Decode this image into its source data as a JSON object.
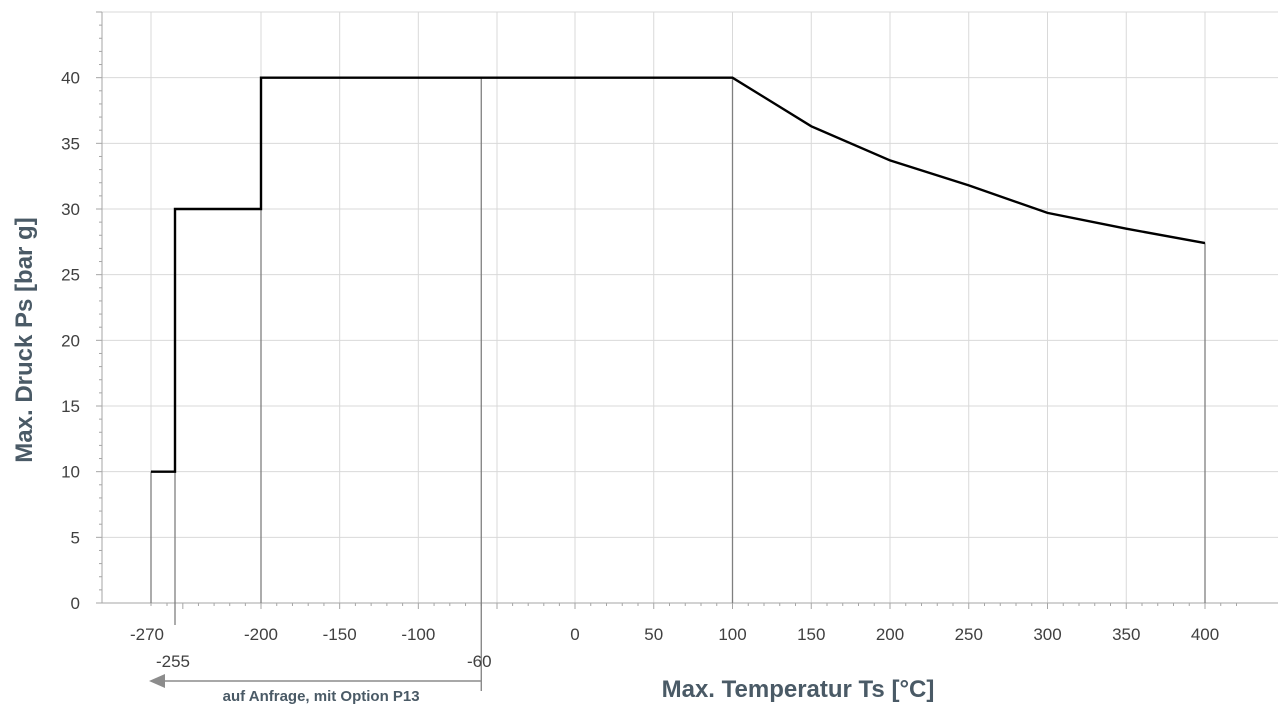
{
  "chart_data": {
    "type": "line",
    "xlabel": "Max. Temperatur Ts [°C]",
    "ylabel": "Max. Druck Ps [bar g]",
    "ylim": [
      0,
      45
    ],
    "y_ticks": [
      "0",
      "5",
      "10",
      "15",
      "20",
      "25",
      "30",
      "35",
      "40"
    ],
    "x_ticks_upper": [
      "-270",
      "-200",
      "-150",
      "-100",
      "0",
      "50",
      "100",
      "150",
      "200",
      "250",
      "300",
      "350",
      "400"
    ],
    "x_ticks_lower": [
      "-255",
      "-60"
    ],
    "grid": true,
    "series": [
      {
        "points": [
          {
            "x": -270,
            "y": 10
          },
          {
            "x": -255,
            "y": 10
          },
          {
            "x": -255,
            "y": 30
          },
          {
            "x": -200,
            "y": 30
          },
          {
            "x": -200,
            "y": 40
          },
          {
            "x": 100,
            "y": 40
          },
          {
            "x": 150,
            "y": 36.3
          },
          {
            "x": 200,
            "y": 33.7
          },
          {
            "x": 250,
            "y": 31.8
          },
          {
            "x": 300,
            "y": 29.7
          },
          {
            "x": 350,
            "y": 28.5
          },
          {
            "x": 400,
            "y": 27.4
          }
        ]
      }
    ],
    "drop_lines_x": [
      -270,
      -255,
      -200,
      -60,
      100,
      400
    ],
    "annotation": {
      "text": "auf Anfrage, mit Option P13",
      "from_x": -60,
      "to_x": -270
    },
    "colors": {
      "line": "#000000",
      "drop_line": "#7f7f7f",
      "grid": "#d9d9d9",
      "axis": "#a6a6a6",
      "title": "#4a5a66",
      "annotation_arrow": "#8c8c8c"
    }
  }
}
